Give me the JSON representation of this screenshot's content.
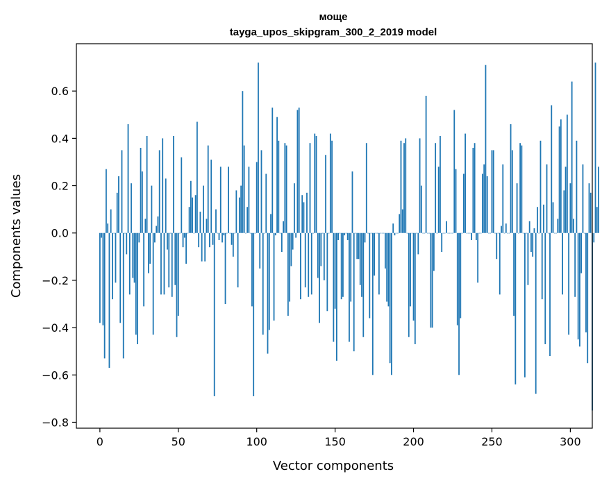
{
  "chart_data": {
    "type": "bar",
    "title": "моще",
    "subtitle": "tayga_upos_skipgram_300_2_2019 model",
    "xlabel": "Vector components",
    "ylabel": "Components values",
    "xlim": [
      -15,
      314
    ],
    "ylim": [
      -0.825,
      0.8
    ],
    "xticks": [
      0,
      50,
      100,
      150,
      200,
      250,
      300
    ],
    "yticks": [
      -0.8,
      -0.6,
      -0.4,
      -0.2,
      0.0,
      0.2,
      0.4,
      0.6
    ],
    "xtick_labels": [
      "0",
      "50",
      "100",
      "150",
      "200",
      "250",
      "300"
    ],
    "ytick_labels": [
      "−0.8",
      "−0.6",
      "−0.4",
      "−0.2",
      "0.0",
      "0.2",
      "0.4",
      "0.6"
    ],
    "grid": false,
    "bar_color": "#1f77b4",
    "values": [
      -0.38,
      -0.02,
      -0.39,
      -0.53,
      0.27,
      0.04,
      -0.57,
      0.1,
      -0.28,
      0.0,
      -0.21,
      0.17,
      0.24,
      -0.38,
      0.35,
      -0.53,
      0.0,
      -0.09,
      0.46,
      -0.26,
      0.21,
      -0.19,
      -0.21,
      -0.43,
      -0.47,
      -0.04,
      0.36,
      0.26,
      -0.31,
      0.06,
      0.41,
      -0.17,
      -0.13,
      0.2,
      -0.43,
      -0.04,
      0.03,
      0.07,
      0.35,
      -0.26,
      0.4,
      -0.26,
      0.23,
      -0.07,
      -0.23,
      0.0,
      -0.27,
      0.41,
      -0.22,
      -0.44,
      -0.35,
      0.0,
      0.32,
      -0.06,
      -0.02,
      -0.13,
      0.0,
      0.11,
      0.22,
      0.15,
      0.0,
      0.16,
      0.47,
      -0.06,
      0.09,
      -0.12,
      0.2,
      -0.12,
      0.06,
      0.37,
      -0.06,
      0.31,
      -0.05,
      -0.69,
      0.1,
      0.0,
      -0.03,
      0.28,
      -0.04,
      -0.01,
      -0.3,
      0.0,
      0.28,
      0.0,
      -0.05,
      -0.1,
      0.0,
      0.18,
      -0.23,
      0.15,
      0.2,
      0.6,
      0.37,
      0.0,
      0.11,
      0.28,
      0.0,
      -0.31,
      -0.69,
      0.0,
      0.3,
      0.72,
      -0.15,
      0.35,
      -0.43,
      0.0,
      0.25,
      -0.51,
      -0.41,
      0.08,
      0.53,
      -0.37,
      -0.01,
      0.49,
      0.39,
      0.0,
      -0.08,
      0.05,
      0.38,
      0.37,
      -0.35,
      -0.29,
      -0.14,
      -0.07,
      0.21,
      -0.02,
      0.52,
      0.53,
      -0.28,
      0.16,
      0.13,
      -0.23,
      0.17,
      -0.27,
      0.38,
      -0.26,
      0.0,
      0.42,
      0.41,
      -0.19,
      -0.38,
      -0.14,
      0.0,
      -0.2,
      0.33,
      -0.33,
      0.0,
      0.42,
      0.39,
      -0.46,
      -0.32,
      -0.54,
      -0.03,
      0.0,
      -0.28,
      -0.27,
      -0.01,
      0.0,
      -0.03,
      -0.46,
      -0.29,
      0.26,
      -0.5,
      0.0,
      -0.11,
      -0.11,
      -0.22,
      -0.27,
      -0.44,
      -0.04,
      0.38,
      0.0,
      -0.36,
      0.0,
      -0.6,
      -0.18,
      0.0,
      0.0,
      -0.26,
      0.0,
      0.0,
      0.0,
      -0.15,
      -0.29,
      -0.31,
      -0.55,
      -0.6,
      0.04,
      -0.01,
      0.0,
      0.0,
      0.08,
      0.39,
      0.1,
      0.38,
      0.4,
      0.0,
      -0.44,
      -0.31,
      0.0,
      -0.37,
      -0.47,
      0.0,
      -0.09,
      0.4,
      0.2,
      0.0,
      0.0,
      0.58,
      0.0,
      0.0,
      -0.4,
      -0.4,
      -0.16,
      0.38,
      0.0,
      0.28,
      0.41,
      -0.08,
      0.0,
      0.0,
      0.05,
      0.0,
      0.0,
      0.0,
      0.0,
      0.52,
      0.27,
      -0.39,
      -0.6,
      -0.36,
      0.0,
      0.25,
      0.42,
      0.0,
      0.0,
      0.0,
      -0.03,
      0.36,
      0.38,
      -0.03,
      -0.21,
      0.0,
      0.0,
      0.25,
      0.29,
      0.71,
      0.24,
      0.0,
      0.0,
      0.35,
      0.35,
      0.0,
      -0.11,
      0.0,
      -0.26,
      0.03,
      0.29,
      0.0,
      0.04,
      0.0,
      0.0,
      0.46,
      0.35,
      -0.35,
      -0.64,
      0.21,
      0.0,
      0.38,
      0.37,
      0.0,
      -0.61,
      0.0,
      -0.22,
      0.05,
      -0.08,
      -0.1,
      0.02,
      -0.68,
      0.11,
      0.0,
      0.39,
      -0.28,
      0.12,
      -0.47,
      0.29,
      0.0,
      -0.52,
      0.54,
      0.13,
      0.0,
      0.0,
      0.06,
      0.45,
      0.48,
      -0.26,
      0.18,
      0.28,
      0.5,
      -0.43,
      0.21,
      0.64,
      0.06,
      -0.27,
      0.39,
      -0.45,
      -0.48,
      -0.17,
      0.29,
      0.0,
      -0.42,
      -0.55,
      0.21,
      0.17,
      -0.75,
      -0.04,
      0.72,
      0.11,
      0.28
    ]
  }
}
